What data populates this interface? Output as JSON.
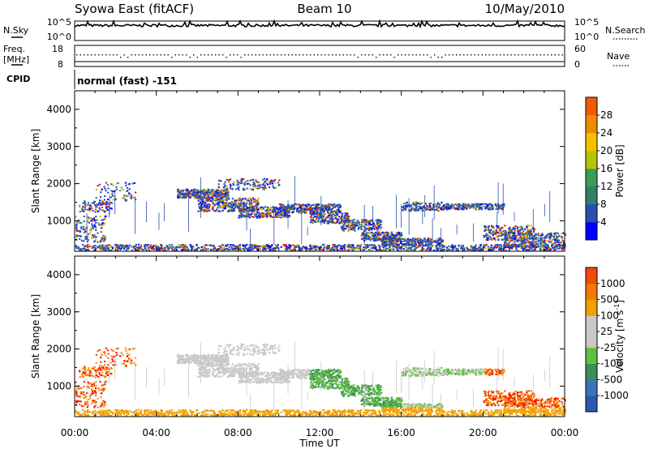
{
  "header": {
    "station": "Syowa East (fitACF)",
    "beam": "Beam 10",
    "date": "10/May/2010"
  },
  "panels": {
    "nsky_label": "N.Sky",
    "nsearch_label": "N.Search",
    "nsky_ticks": [
      "10^5",
      "10^0"
    ],
    "nsearch_ticks": [
      "10^5",
      "10^0"
    ],
    "freq_label_1": "Freq.",
    "freq_label_2": "[MHz]",
    "freq_ticks": [
      "18",
      "8"
    ],
    "nave_label": "Nave",
    "nave_ticks": [
      "60",
      "0"
    ],
    "cpid_label": "CPID",
    "cpid_value": "normal (fast) -151"
  },
  "colors": {
    "power_scale": [
      "#0000ff",
      "#2a4fb0",
      "#2f7f6e",
      "#3d9b57",
      "#b8c400",
      "#f2c200",
      "#f28a00",
      "#f25a00",
      "#e81c00",
      "#ff0000"
    ],
    "velocity_scale": [
      "#2a5ab0",
      "#3a74b8",
      "#3b8f57",
      "#5fbf3f",
      "#c8c8c8",
      "#c8c8c8",
      "#f2a000",
      "#f27800",
      "#f24a00",
      "#ff0000"
    ]
  },
  "chart_data": [
    {
      "type": "heatmap",
      "name": "power-panel",
      "ylabel": "Slant Range [km]",
      "ylim": [
        180,
        4500
      ],
      "y_ticks": [
        "1000",
        "2000",
        "3000",
        "4000"
      ],
      "x_ticks": [
        "00:00",
        "04:00",
        "08:00",
        "12:00",
        "16:00",
        "20:00",
        "00:00"
      ],
      "colorbar_label": "Power [dB]",
      "colorbar_ticks": [
        "4",
        "8",
        "12",
        "16",
        "20",
        "24",
        "28"
      ],
      "colorbar_range": [
        0,
        32
      ]
    },
    {
      "type": "heatmap",
      "name": "velocity-panel",
      "ylabel": "Slant Range [km]",
      "xlabel": "Time UT",
      "ylim": [
        180,
        4500
      ],
      "y_ticks": [
        "1000",
        "2000",
        "3000",
        "4000"
      ],
      "x_ticks": [
        "00:00",
        "04:00",
        "08:00",
        "12:00",
        "16:00",
        "20:00",
        "00:00"
      ],
      "colorbar_label": "Velocity [m s",
      "colorbar_label_sup": "-1",
      "colorbar_label_end": "]",
      "colorbar_ticks": [
        "1000",
        "500",
        "100",
        "25",
        "-25",
        "-100",
        "-500",
        "-1000"
      ]
    }
  ]
}
